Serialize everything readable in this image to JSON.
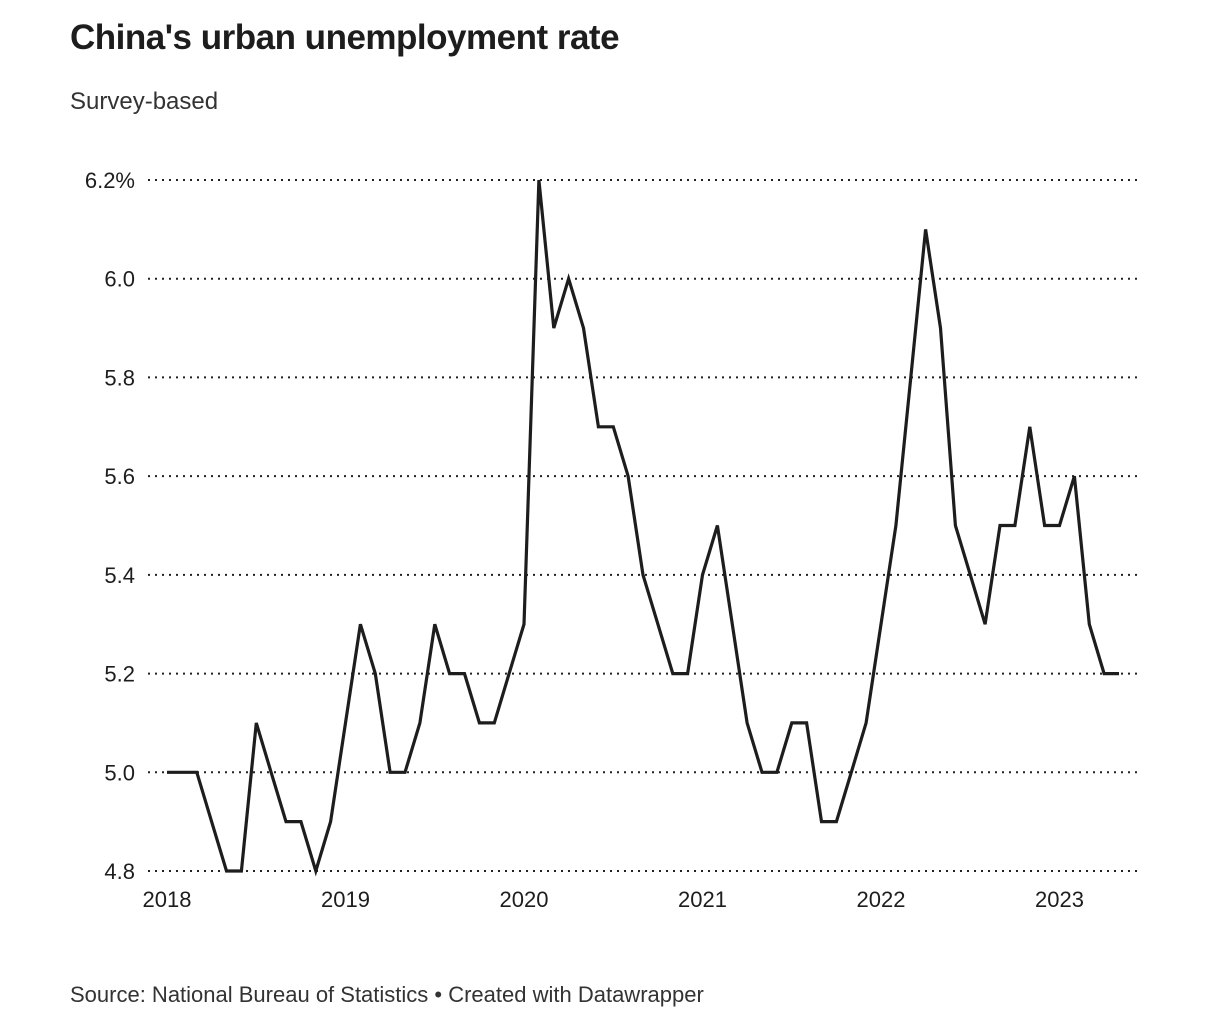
{
  "chart_data": {
    "type": "line",
    "title": "China's urban unemployment rate",
    "subtitle": "Survey-based",
    "source": "Source: National Bureau of Statistics • Created with Datawrapper",
    "xlabel": "",
    "ylabel": "",
    "ylim": [
      4.8,
      6.2
    ],
    "yticks": [
      4.8,
      5.0,
      5.2,
      5.4,
      5.6,
      5.8,
      6.0,
      6.2
    ],
    "ytick_labels": [
      "4.8",
      "5.0",
      "5.2",
      "5.4",
      "5.6",
      "5.8",
      "6.0",
      "6.2%"
    ],
    "xticks": [
      "2018",
      "2019",
      "2020",
      "2021",
      "2022",
      "2023"
    ],
    "grid": true,
    "series": [
      {
        "name": "Urban unemployment rate",
        "color": "#1d1d1d",
        "start": "2018-01",
        "frequency": "monthly",
        "values": [
          5.0,
          5.0,
          5.0,
          4.9,
          4.8,
          4.8,
          5.1,
          5.0,
          4.9,
          4.9,
          4.8,
          4.9,
          5.1,
          5.3,
          5.2,
          5.0,
          5.0,
          5.1,
          5.3,
          5.2,
          5.2,
          5.1,
          5.1,
          5.2,
          5.3,
          6.2,
          5.9,
          6.0,
          5.9,
          5.7,
          5.7,
          5.6,
          5.4,
          5.3,
          5.2,
          5.2,
          5.4,
          5.5,
          5.3,
          5.1,
          5.0,
          5.0,
          5.1,
          5.1,
          4.9,
          4.9,
          5.0,
          5.1,
          5.3,
          5.5,
          5.8,
          6.1,
          5.9,
          5.5,
          5.4,
          5.3,
          5.5,
          5.5,
          5.7,
          5.5,
          5.5,
          5.6,
          5.3,
          5.2,
          5.2
        ]
      }
    ]
  }
}
